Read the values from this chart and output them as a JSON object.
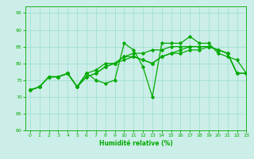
{
  "title": "",
  "xlabel": "Humidité relative (%)",
  "ylabel": "",
  "xlim": [
    -0.5,
    23
  ],
  "ylim": [
    60,
    97
  ],
  "yticks": [
    60,
    65,
    70,
    75,
    80,
    85,
    90,
    95
  ],
  "xticks": [
    0,
    1,
    2,
    3,
    4,
    5,
    6,
    7,
    8,
    9,
    10,
    11,
    12,
    13,
    14,
    15,
    16,
    17,
    18,
    19,
    20,
    21,
    22,
    23
  ],
  "bg_color": "#cceee8",
  "grid_color": "#99ddcc",
  "line_color": "#00aa00",
  "line1": [
    72,
    73,
    76,
    76,
    77,
    73,
    77,
    75,
    74,
    75,
    86,
    84,
    79,
    70,
    86,
    86,
    86,
    88,
    86,
    86,
    83,
    82,
    81,
    77
  ],
  "line2": [
    72,
    73,
    76,
    76,
    77,
    73,
    77,
    78,
    80,
    80,
    82,
    83,
    83,
    84,
    84,
    85,
    85,
    85,
    85,
    85,
    84,
    83,
    77,
    77
  ],
  "line3": [
    72,
    73,
    76,
    76,
    77,
    73,
    76,
    77,
    79,
    80,
    82,
    82,
    81,
    80,
    82,
    83,
    83,
    84,
    84,
    85,
    84,
    83,
    77,
    77
  ],
  "line4": [
    72,
    73,
    76,
    76,
    77,
    73,
    76,
    77,
    79,
    80,
    81,
    82,
    81,
    80,
    82,
    83,
    84,
    85,
    85,
    85,
    84,
    83,
    77,
    77
  ],
  "marker": "D",
  "markersize": 1.8,
  "linewidth": 0.9
}
